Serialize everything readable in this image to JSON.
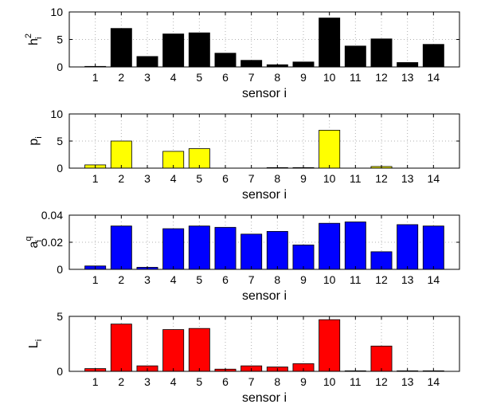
{
  "chart_data": [
    {
      "type": "bar",
      "panel": "h2",
      "ylabel": "h_i^2",
      "ylabel_parts": {
        "base": "h",
        "sup": "2",
        "sub": "i"
      },
      "xlabel": "sensor i",
      "categories": [
        "1",
        "2",
        "3",
        "4",
        "5",
        "6",
        "7",
        "8",
        "9",
        "10",
        "11",
        "12",
        "13",
        "14"
      ],
      "values": [
        0.1,
        7.0,
        1.9,
        6.0,
        6.2,
        2.5,
        1.2,
        0.4,
        0.9,
        8.9,
        3.8,
        5.1,
        0.8,
        4.1
      ],
      "ylim": [
        0,
        10
      ],
      "yticks": [
        "0",
        "5",
        "10"
      ],
      "ytick_values": [
        0,
        5,
        10
      ],
      "grid": true,
      "color": "#000000"
    },
    {
      "type": "bar",
      "panel": "p",
      "ylabel": "p_i",
      "ylabel_parts": {
        "base": "p",
        "sup": "",
        "sub": "i"
      },
      "xlabel": "sensor i",
      "categories": [
        "1",
        "2",
        "3",
        "4",
        "5",
        "6",
        "7",
        "8",
        "9",
        "10",
        "11",
        "12",
        "13",
        "14"
      ],
      "values": [
        0.6,
        5.0,
        0.0,
        3.1,
        3.6,
        0.0,
        0.0,
        0.1,
        0.1,
        7.0,
        0.0,
        0.3,
        0.0,
        0.0
      ],
      "ylim": [
        0,
        10
      ],
      "yticks": [
        "0",
        "5",
        "10"
      ],
      "ytick_values": [
        0,
        5,
        10
      ],
      "grid": true,
      "color": "#ffff00"
    },
    {
      "type": "bar",
      "panel": "aq",
      "ylabel": "a_i^q",
      "ylabel_parts": {
        "base": "a",
        "sup": "q",
        "sub": "i"
      },
      "xlabel": "sensor i",
      "categories": [
        "1",
        "2",
        "3",
        "4",
        "5",
        "6",
        "7",
        "8",
        "9",
        "10",
        "11",
        "12",
        "13",
        "14"
      ],
      "values": [
        0.0025,
        0.032,
        0.0015,
        0.03,
        0.032,
        0.031,
        0.026,
        0.028,
        0.018,
        0.034,
        0.035,
        0.013,
        0.033,
        0.032
      ],
      "ylim": [
        0,
        0.04
      ],
      "yticks": [
        "0",
        "0.02",
        "0.04"
      ],
      "ytick_values": [
        0,
        0.02,
        0.04
      ],
      "grid": true,
      "color": "#0000ff"
    },
    {
      "type": "bar",
      "panel": "L",
      "ylabel": "L_i",
      "ylabel_parts": {
        "base": "L",
        "sup": "",
        "sub": "i"
      },
      "xlabel": "sensor i",
      "categories": [
        "1",
        "2",
        "3",
        "4",
        "5",
        "6",
        "7",
        "8",
        "9",
        "10",
        "11",
        "12",
        "13",
        "14"
      ],
      "values": [
        0.25,
        4.3,
        0.5,
        3.8,
        3.9,
        0.2,
        0.5,
        0.4,
        0.7,
        4.7,
        0.05,
        2.3,
        0.05,
        0.05
      ],
      "ylim": [
        0,
        5
      ],
      "yticks": [
        "0",
        "5"
      ],
      "ytick_values": [
        0,
        5
      ],
      "grid": true,
      "color": "#ff0000"
    }
  ]
}
